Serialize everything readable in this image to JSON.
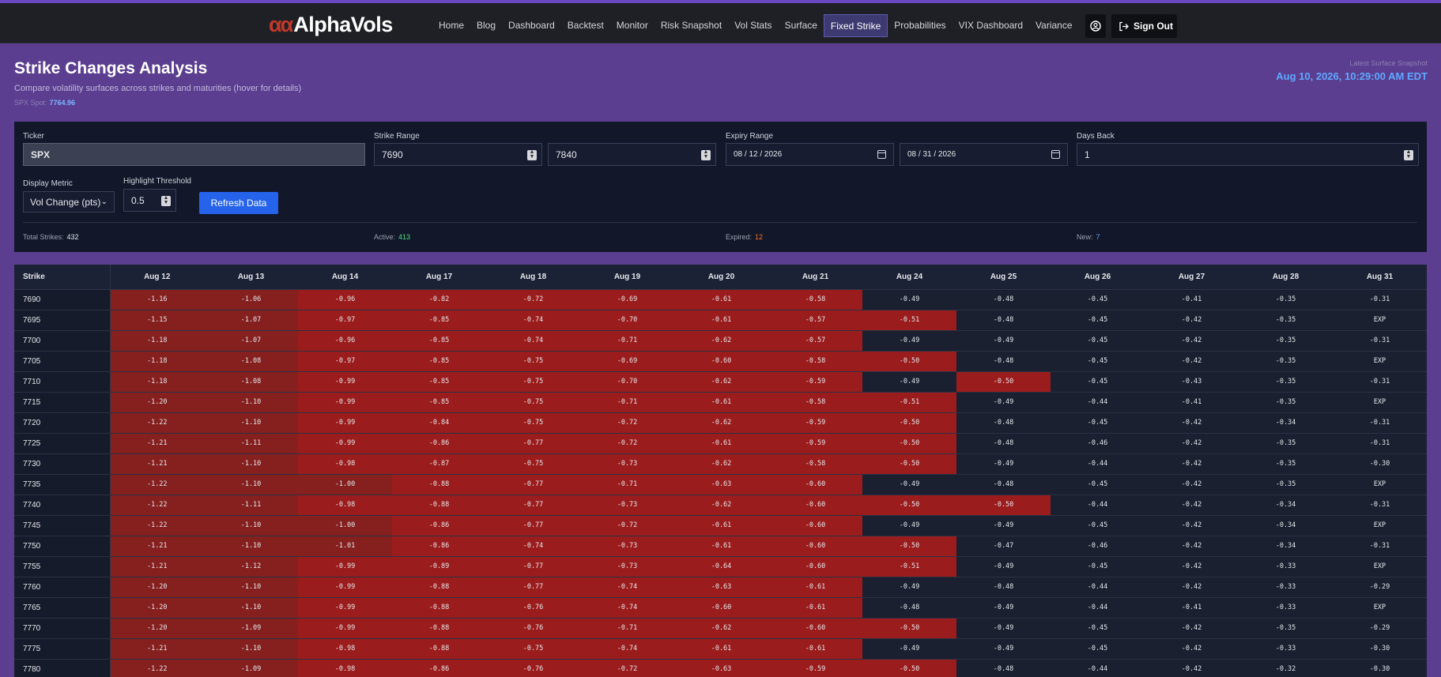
{
  "nav": {
    "logo_mark": "αα",
    "logo_text": "AlphaVols",
    "items": [
      {
        "label": "Home"
      },
      {
        "label": "Blog"
      },
      {
        "label": "Dashboard"
      },
      {
        "label": "Backtest"
      },
      {
        "label": "Monitor"
      },
      {
        "label": "Risk Snapshot"
      },
      {
        "label": "Vol Stats"
      },
      {
        "label": "Surface"
      },
      {
        "label": "Fixed Strike",
        "active": true
      },
      {
        "label": "Probabilities"
      },
      {
        "label": "VIX Dashboard"
      },
      {
        "label": "Variance"
      }
    ],
    "user_icon": "user-circle-icon",
    "signout_label": "Sign Out",
    "signout_icon": "sign-out-icon"
  },
  "header": {
    "title": "Strike Changes Analysis",
    "subtitle": "Compare volatility surfaces across strikes and maturities (hover for details)",
    "spot_label": "SPX Spot:",
    "spot_value": "7764.96",
    "snapshot_label": "Latest Surface Snapshot",
    "snapshot_value": "Aug 10, 2026, 10:29:00 AM EDT"
  },
  "controls": {
    "ticker_label": "Ticker",
    "ticker_value": "SPX",
    "strike_range_label": "Strike Range",
    "strike_min": "7690",
    "strike_max": "7840",
    "expiry_range_label": "Expiry Range",
    "expiry_start": "08 / 12 / 2026",
    "expiry_end": "08 / 31 / 2026",
    "days_back_label": "Days Back",
    "days_back_value": "1",
    "display_metric_label": "Display Metric",
    "display_metric_value": "Vol Change (pts)",
    "threshold_label": "Highlight Threshold",
    "threshold_value": "0.5",
    "refresh_label": "Refresh Data"
  },
  "stats": {
    "total_label": "Total Strikes:",
    "total_value": "432",
    "active_label": "Active:",
    "active_value": "413",
    "expired_label": "Expired:",
    "expired_value": "12",
    "new_label": "New:",
    "new_value": "7"
  },
  "colors": {
    "active": "#4ade80",
    "expired": "#f97316",
    "new": "#60a5fa",
    "highlight": "#9b1c1c"
  },
  "table": {
    "strike_header": "Strike",
    "columns": [
      "Aug 12",
      "Aug 13",
      "Aug 14",
      "Aug 17",
      "Aug 18",
      "Aug 19",
      "Aug 20",
      "Aug 21",
      "Aug 24",
      "Aug 25",
      "Aug 26",
      "Aug 27",
      "Aug 28",
      "Aug 31"
    ],
    "rows": [
      {
        "strike": "7690",
        "cells": [
          "-1.16",
          "-1.06",
          "-0.96",
          "-0.82",
          "-0.72",
          "-0.69",
          "-0.61",
          "-0.58",
          "-0.49",
          "-0.48",
          "-0.45",
          "-0.41",
          "-0.35",
          "-0.31"
        ]
      },
      {
        "strike": "7695",
        "cells": [
          "-1.15",
          "-1.07",
          "-0.97",
          "-0.85",
          "-0.74",
          "-0.70",
          "-0.61",
          "-0.57",
          "-0.51",
          "-0.48",
          "-0.45",
          "-0.42",
          "-0.35",
          "EXP"
        ]
      },
      {
        "strike": "7700",
        "cells": [
          "-1.18",
          "-1.07",
          "-0.96",
          "-0.85",
          "-0.74",
          "-0.71",
          "-0.62",
          "-0.57",
          "-0.49",
          "-0.49",
          "-0.45",
          "-0.42",
          "-0.35",
          "-0.31"
        ]
      },
      {
        "strike": "7705",
        "cells": [
          "-1.18",
          "-1.08",
          "-0.97",
          "-0.85",
          "-0.75",
          "-0.69",
          "-0.60",
          "-0.58",
          "-0.50",
          "-0.48",
          "-0.45",
          "-0.42",
          "-0.35",
          "EXP"
        ]
      },
      {
        "strike": "7710",
        "cells": [
          "-1.18",
          "-1.08",
          "-0.99",
          "-0.85",
          "-0.75",
          "-0.70",
          "-0.62",
          "-0.59",
          "-0.49",
          "-0.50",
          "-0.45",
          "-0.43",
          "-0.35",
          "-0.31"
        ]
      },
      {
        "strike": "7715",
        "cells": [
          "-1.20",
          "-1.10",
          "-0.99",
          "-0.85",
          "-0.75",
          "-0.71",
          "-0.61",
          "-0.58",
          "-0.51",
          "-0.49",
          "-0.44",
          "-0.41",
          "-0.35",
          "EXP"
        ]
      },
      {
        "strike": "7720",
        "cells": [
          "-1.22",
          "-1.10",
          "-0.99",
          "-0.84",
          "-0.75",
          "-0.72",
          "-0.62",
          "-0.59",
          "-0.50",
          "-0.48",
          "-0.45",
          "-0.42",
          "-0.34",
          "-0.31"
        ]
      },
      {
        "strike": "7725",
        "cells": [
          "-1.21",
          "-1.11",
          "-0.99",
          "-0.86",
          "-0.77",
          "-0.72",
          "-0.61",
          "-0.59",
          "-0.50",
          "-0.48",
          "-0.46",
          "-0.42",
          "-0.35",
          "-0.31"
        ]
      },
      {
        "strike": "7730",
        "cells": [
          "-1.21",
          "-1.10",
          "-0.98",
          "-0.87",
          "-0.75",
          "-0.73",
          "-0.62",
          "-0.58",
          "-0.50",
          "-0.49",
          "-0.44",
          "-0.42",
          "-0.35",
          "-0.30"
        ]
      },
      {
        "strike": "7735",
        "cells": [
          "-1.22",
          "-1.10",
          "-1.00",
          "-0.88",
          "-0.77",
          "-0.71",
          "-0.63",
          "-0.60",
          "-0.49",
          "-0.48",
          "-0.45",
          "-0.42",
          "-0.35",
          "EXP"
        ]
      },
      {
        "strike": "7740",
        "cells": [
          "-1.22",
          "-1.11",
          "-0.98",
          "-0.88",
          "-0.77",
          "-0.73",
          "-0.62",
          "-0.60",
          "-0.50",
          "-0.50",
          "-0.44",
          "-0.42",
          "-0.34",
          "-0.31"
        ]
      },
      {
        "strike": "7745",
        "cells": [
          "-1.22",
          "-1.10",
          "-1.00",
          "-0.86",
          "-0.77",
          "-0.72",
          "-0.61",
          "-0.60",
          "-0.49",
          "-0.49",
          "-0.45",
          "-0.42",
          "-0.34",
          "EXP"
        ]
      },
      {
        "strike": "7750",
        "cells": [
          "-1.21",
          "-1.10",
          "-1.01",
          "-0.86",
          "-0.74",
          "-0.73",
          "-0.61",
          "-0.60",
          "-0.50",
          "-0.47",
          "-0.46",
          "-0.42",
          "-0.34",
          "-0.31"
        ]
      },
      {
        "strike": "7755",
        "cells": [
          "-1.21",
          "-1.12",
          "-0.99",
          "-0.89",
          "-0.77",
          "-0.73",
          "-0.64",
          "-0.60",
          "-0.51",
          "-0.49",
          "-0.45",
          "-0.42",
          "-0.33",
          "EXP"
        ]
      },
      {
        "strike": "7760",
        "cells": [
          "-1.20",
          "-1.10",
          "-0.99",
          "-0.88",
          "-0.77",
          "-0.74",
          "-0.63",
          "-0.61",
          "-0.49",
          "-0.48",
          "-0.44",
          "-0.42",
          "-0.33",
          "-0.29"
        ]
      },
      {
        "strike": "7765",
        "cells": [
          "-1.20",
          "-1.10",
          "-0.99",
          "-0.88",
          "-0.76",
          "-0.74",
          "-0.60",
          "-0.61",
          "-0.48",
          "-0.49",
          "-0.44",
          "-0.41",
          "-0.33",
          "EXP"
        ]
      },
      {
        "strike": "7770",
        "cells": [
          "-1.20",
          "-1.09",
          "-0.99",
          "-0.88",
          "-0.76",
          "-0.71",
          "-0.62",
          "-0.60",
          "-0.50",
          "-0.49",
          "-0.45",
          "-0.42",
          "-0.35",
          "-0.29"
        ]
      },
      {
        "strike": "7775",
        "cells": [
          "-1.21",
          "-1.10",
          "-0.98",
          "-0.88",
          "-0.75",
          "-0.74",
          "-0.61",
          "-0.61",
          "-0.49",
          "-0.49",
          "-0.45",
          "-0.42",
          "-0.33",
          "-0.30"
        ]
      },
      {
        "strike": "7780",
        "cells": [
          "-1.22",
          "-1.09",
          "-0.98",
          "-0.86",
          "-0.76",
          "-0.72",
          "-0.63",
          "-0.59",
          "-0.50",
          "-0.48",
          "-0.44",
          "-0.42",
          "-0.32",
          "-0.30"
        ]
      }
    ]
  }
}
